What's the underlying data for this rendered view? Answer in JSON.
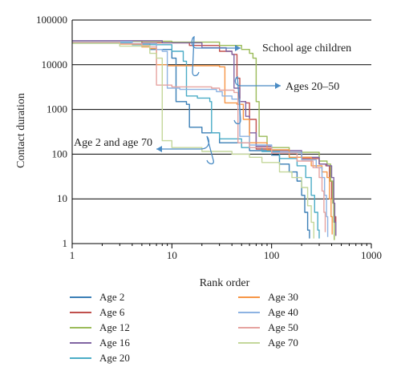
{
  "chart_data": {
    "type": "line",
    "xlabel": "Rank order",
    "ylabel": "Contact duration",
    "xscale": "log",
    "yscale": "log",
    "xlim": [
      1,
      1000
    ],
    "ylim": [
      1,
      100000
    ],
    "xticks": [
      "1",
      "10",
      "100",
      "1000"
    ],
    "yticks": [
      "1",
      "10",
      "100",
      "1000",
      "10000",
      "100000"
    ],
    "grid": "horizontal",
    "legend_position": "bottom, two columns",
    "annotations": [
      {
        "text": "School age children",
        "points_to": "Age 6, Age 12, Age 16 plateau"
      },
      {
        "text": "Ages 20–50",
        "points_to": "Age 20, Age 30, Age 40, Age 50 curves"
      },
      {
        "text": "Age 2 and age 70",
        "points_to": "Age 2, Age 70 curves"
      }
    ],
    "series": [
      {
        "name": "Age 2",
        "color": "#3b7fb6",
        "points": [
          [
            1,
            33000
          ],
          [
            3,
            30000
          ],
          [
            6,
            22000
          ],
          [
            10,
            14000
          ],
          [
            11,
            1500
          ],
          [
            14,
            1300
          ],
          [
            15,
            400
          ],
          [
            20,
            300
          ],
          [
            30,
            180
          ],
          [
            60,
            120
          ],
          [
            100,
            95
          ],
          [
            120,
            60
          ],
          [
            150,
            40
          ],
          [
            180,
            25
          ],
          [
            200,
            12
          ],
          [
            215,
            5
          ],
          [
            230,
            2
          ],
          [
            240,
            1.3
          ]
        ]
      },
      {
        "name": "Age 6",
        "color": "#c0504d",
        "points": [
          [
            1,
            34000
          ],
          [
            5,
            31000
          ],
          [
            15,
            27000
          ],
          [
            30,
            20000
          ],
          [
            40,
            17000
          ],
          [
            45,
            5000
          ],
          [
            48,
            1500
          ],
          [
            55,
            1400
          ],
          [
            60,
            600
          ],
          [
            70,
            130
          ],
          [
            100,
            110
          ],
          [
            200,
            80
          ],
          [
            300,
            60
          ],
          [
            350,
            55
          ],
          [
            380,
            25
          ],
          [
            400,
            10
          ],
          [
            420,
            4
          ],
          [
            440,
            1.5
          ]
        ]
      },
      {
        "name": "Age 12",
        "color": "#9bbb59",
        "points": [
          [
            1,
            33500
          ],
          [
            10,
            32000
          ],
          [
            30,
            27000
          ],
          [
            50,
            22000
          ],
          [
            60,
            18000
          ],
          [
            65,
            14000
          ],
          [
            70,
            1500
          ],
          [
            75,
            250
          ],
          [
            90,
            140
          ],
          [
            150,
            110
          ],
          [
            300,
            70
          ],
          [
            360,
            60
          ],
          [
            390,
            25
          ],
          [
            410,
            8
          ],
          [
            420,
            3
          ],
          [
            425,
            1.2
          ]
        ]
      },
      {
        "name": "Age 16",
        "color": "#8064a2",
        "points": [
          [
            1,
            34500
          ],
          [
            8,
            31000
          ],
          [
            20,
            24000
          ],
          [
            35,
            20000
          ],
          [
            40,
            17000
          ],
          [
            42,
            3000
          ],
          [
            48,
            1500
          ],
          [
            55,
            700
          ],
          [
            60,
            300
          ],
          [
            70,
            150
          ],
          [
            100,
            120
          ],
          [
            200,
            85
          ],
          [
            300,
            60
          ],
          [
            360,
            55
          ],
          [
            400,
            30
          ],
          [
            420,
            8
          ],
          [
            430,
            3
          ],
          [
            440,
            1.5
          ]
        ]
      },
      {
        "name": "Age 20",
        "color": "#4bacc6",
        "points": [
          [
            1,
            31000
          ],
          [
            4,
            28000
          ],
          [
            10,
            20000
          ],
          [
            13,
            12000
          ],
          [
            14,
            2000
          ],
          [
            18,
            1800
          ],
          [
            24,
            1500
          ],
          [
            25,
            300
          ],
          [
            30,
            220
          ],
          [
            50,
            140
          ],
          [
            80,
            115
          ],
          [
            120,
            80
          ],
          [
            180,
            55
          ],
          [
            220,
            30
          ],
          [
            250,
            12
          ],
          [
            270,
            5
          ],
          [
            290,
            2
          ],
          [
            300,
            1.3
          ]
        ]
      },
      {
        "name": "Age 30",
        "color": "#f79646",
        "points": [
          [
            1,
            32500
          ],
          [
            3,
            29000
          ],
          [
            5,
            25000
          ],
          [
            6,
            23000
          ],
          [
            7,
            10000
          ],
          [
            9,
            9500
          ],
          [
            30,
            9000
          ],
          [
            34,
            1400
          ],
          [
            45,
            1300
          ],
          [
            52,
            600
          ],
          [
            60,
            180
          ],
          [
            90,
            125
          ],
          [
            150,
            85
          ],
          [
            250,
            55
          ],
          [
            320,
            40
          ],
          [
            360,
            30
          ],
          [
            380,
            10
          ],
          [
            395,
            4
          ],
          [
            405,
            1.6
          ]
        ]
      },
      {
        "name": "Age 40",
        "color": "#8db3e2",
        "points": [
          [
            1,
            33000
          ],
          [
            4,
            30000
          ],
          [
            7,
            22000
          ],
          [
            8,
            20000
          ],
          [
            9,
            3000
          ],
          [
            12,
            2800
          ],
          [
            28,
            2500
          ],
          [
            32,
            2000
          ],
          [
            40,
            1700
          ],
          [
            48,
            250
          ],
          [
            60,
            160
          ],
          [
            100,
            110
          ],
          [
            200,
            75
          ],
          [
            280,
            50
          ],
          [
            320,
            30
          ],
          [
            340,
            12
          ],
          [
            355,
            4
          ],
          [
            365,
            1.4
          ]
        ]
      },
      {
        "name": "Age 50",
        "color": "#e6a3a0",
        "points": [
          [
            1,
            32000
          ],
          [
            3,
            29500
          ],
          [
            5,
            27000
          ],
          [
            6,
            25000
          ],
          [
            7,
            3500
          ],
          [
            10,
            3200
          ],
          [
            25,
            3000
          ],
          [
            30,
            2700
          ],
          [
            42,
            2400
          ],
          [
            46,
            180
          ],
          [
            60,
            140
          ],
          [
            100,
            105
          ],
          [
            180,
            70
          ],
          [
            260,
            50
          ],
          [
            300,
            30
          ],
          [
            320,
            15
          ],
          [
            335,
            5
          ],
          [
            345,
            1.8
          ]
        ]
      },
      {
        "name": "Age 70",
        "color": "#c4d79b",
        "points": [
          [
            1,
            30000
          ],
          [
            3,
            26000
          ],
          [
            6,
            18000
          ],
          [
            7,
            14000
          ],
          [
            8,
            200
          ],
          [
            10,
            140
          ],
          [
            20,
            115
          ],
          [
            40,
            100
          ],
          [
            60,
            85
          ],
          [
            80,
            65
          ],
          [
            120,
            40
          ],
          [
            160,
            30
          ],
          [
            200,
            18
          ],
          [
            230,
            7
          ],
          [
            250,
            3
          ],
          [
            265,
            1.3
          ]
        ]
      }
    ]
  }
}
